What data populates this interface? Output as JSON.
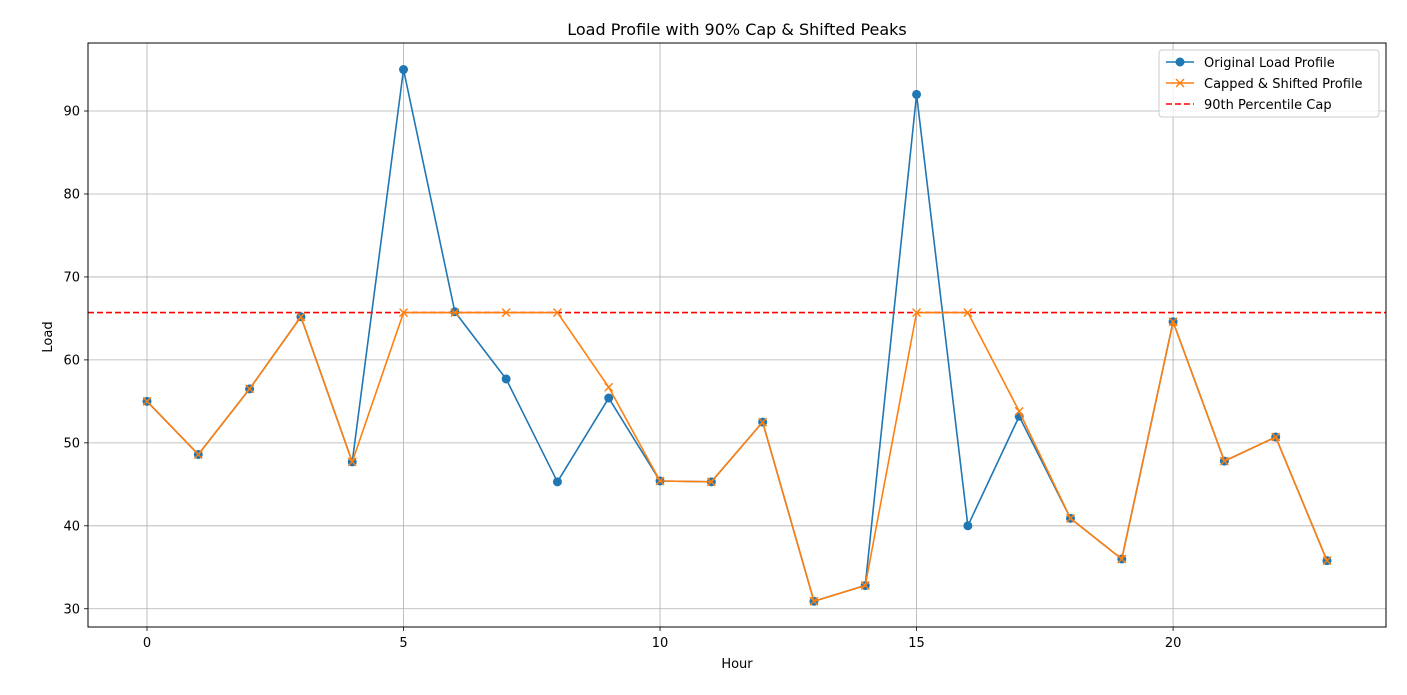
{
  "chart_data": {
    "type": "line",
    "title": "Load Profile with 90% Cap & Shifted Peaks",
    "xlabel": "Hour",
    "ylabel": "Load",
    "xlim": [
      -1.15,
      24.15
    ],
    "ylim": [
      27.8,
      98.2
    ],
    "x_ticks": [
      0,
      5,
      10,
      15,
      20
    ],
    "y_ticks": [
      30,
      40,
      50,
      60,
      70,
      80,
      90
    ],
    "grid": true,
    "legend_position": "top-right",
    "x": [
      0,
      1,
      2,
      3,
      4,
      5,
      6,
      7,
      8,
      9,
      10,
      11,
      12,
      13,
      14,
      15,
      16,
      17,
      18,
      19,
      20,
      21,
      22,
      23
    ],
    "series": [
      {
        "name": "Original Load Profile",
        "color": "#1f77b4",
        "marker": "circle",
        "values": [
          55.0,
          48.6,
          56.5,
          65.2,
          47.7,
          95.0,
          65.8,
          57.7,
          45.3,
          55.4,
          45.4,
          45.3,
          52.5,
          30.9,
          32.8,
          92.0,
          40.0,
          53.2,
          40.9,
          36.0,
          64.6,
          47.8,
          50.7,
          35.8
        ]
      },
      {
        "name": "Capped & Shifted Profile",
        "color": "#ff7f0e",
        "marker": "x",
        "values": [
          55.0,
          48.6,
          56.5,
          65.2,
          47.7,
          65.7,
          65.7,
          65.7,
          65.7,
          56.7,
          45.4,
          45.3,
          52.5,
          30.9,
          32.8,
          65.7,
          65.7,
          53.8,
          40.9,
          36.0,
          64.6,
          47.8,
          50.7,
          35.8
        ]
      }
    ],
    "reference_lines": [
      {
        "name": "90th Percentile Cap",
        "color": "#ff0000",
        "style": "dashed",
        "y": 65.7
      }
    ]
  }
}
